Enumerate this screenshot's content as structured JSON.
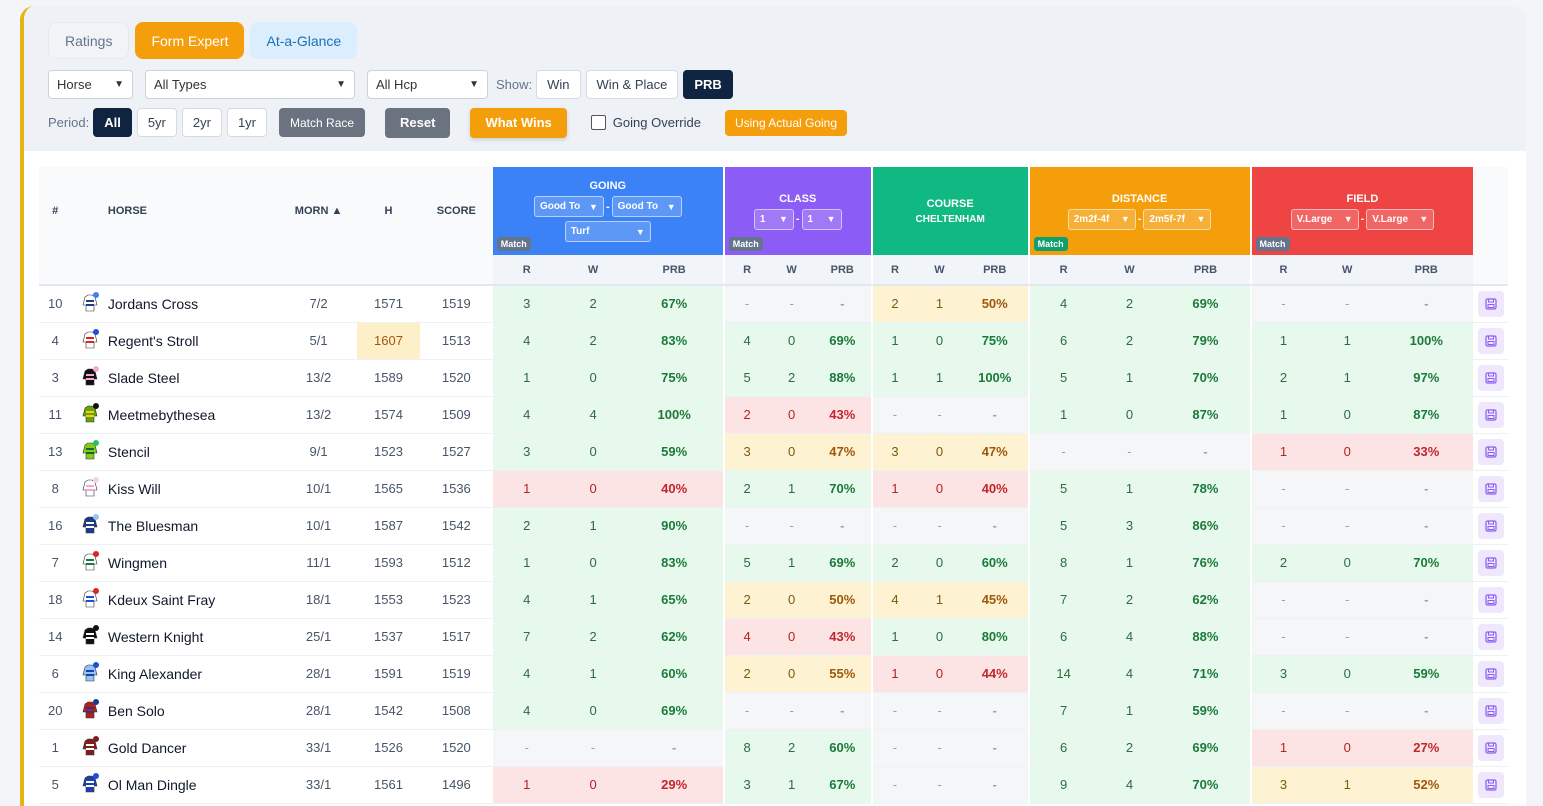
{
  "tabs": [
    {
      "label": "Ratings"
    },
    {
      "label": "Form Expert"
    },
    {
      "label": "At-a-Glance"
    }
  ],
  "filters": {
    "race_type": "Horse",
    "types": "All Types",
    "hcp": "All Hcp",
    "show_label": "Show:",
    "show_options": [
      "Win",
      "Win & Place",
      "PRB"
    ],
    "show_selected": "PRB",
    "period_label": "Period:",
    "period_options": [
      "All",
      "5yr",
      "2yr",
      "1yr"
    ],
    "period_selected": "All",
    "match_race": "Match Race",
    "reset": "Reset",
    "what_wins": "What Wins",
    "going_override": "Going Override",
    "using_actual_going": "Using Actual Going"
  },
  "headers": {
    "num": "#",
    "horse": "HORSE",
    "morn": "MORN ▲",
    "h": "H",
    "score": "SCORE",
    "going": {
      "title": "GOING",
      "sel1": "Good To",
      "sel2": "Good To",
      "sel3": "Turf",
      "tag": "Match"
    },
    "class": {
      "title": "CLASS",
      "sel1": "1",
      "sel2": "1",
      "tag": "Match"
    },
    "course": {
      "title": "COURSE",
      "sub": "CHELTENHAM"
    },
    "distance": {
      "title": "DISTANCE",
      "sel1": "2m2f-4f",
      "sel2": "2m5f-7f",
      "tag": "Match"
    },
    "field": {
      "title": "FIELD",
      "sel1": "V.Large",
      "sel2": "V.Large",
      "tag": "Match"
    },
    "sub": {
      "r": "R",
      "w": "W",
      "prb": "PRB"
    }
  },
  "colors": {
    "going": "#3b82f6",
    "class": "#8b5cf6",
    "course": "#10b981",
    "distance": "#f59e0b",
    "field": "#ef4444",
    "accent": "#f59e0b",
    "navy": "#0f2440"
  },
  "rows": [
    {
      "num": "10",
      "horse": "Jordans Cross",
      "morn": "7/2",
      "h": "1571",
      "score": "1519",
      "going": [
        "3",
        "2",
        "67%",
        "g"
      ],
      "class": [
        "-",
        "-",
        "-",
        "n"
      ],
      "course": [
        "2",
        "1",
        "50%",
        "y"
      ],
      "distance": [
        "4",
        "2",
        "69%",
        "g"
      ],
      "field": [
        "-",
        "-",
        "-",
        "n"
      ]
    },
    {
      "num": "4",
      "horse": "Regent's Stroll",
      "morn": "5/1",
      "h": "1607",
      "score": "1513",
      "going": [
        "4",
        "2",
        "83%",
        "g"
      ],
      "class": [
        "4",
        "0",
        "69%",
        "g"
      ],
      "course": [
        "1",
        "0",
        "75%",
        "g"
      ],
      "distance": [
        "6",
        "2",
        "79%",
        "g"
      ],
      "field": [
        "1",
        "1",
        "100%",
        "g"
      ]
    },
    {
      "num": "3",
      "horse": "Slade Steel",
      "morn": "13/2",
      "h": "1589",
      "score": "1520",
      "going": [
        "1",
        "0",
        "75%",
        "g"
      ],
      "class": [
        "5",
        "2",
        "88%",
        "g"
      ],
      "course": [
        "1",
        "1",
        "100%",
        "g"
      ],
      "distance": [
        "5",
        "1",
        "70%",
        "g"
      ],
      "field": [
        "2",
        "1",
        "97%",
        "g"
      ]
    },
    {
      "num": "11",
      "horse": "Meetmebythesea",
      "morn": "13/2",
      "h": "1574",
      "score": "1509",
      "going": [
        "4",
        "4",
        "100%",
        "g"
      ],
      "class": [
        "2",
        "0",
        "43%",
        "r"
      ],
      "course": [
        "-",
        "-",
        "-",
        "n"
      ],
      "distance": [
        "1",
        "0",
        "87%",
        "g"
      ],
      "field": [
        "1",
        "0",
        "87%",
        "g"
      ]
    },
    {
      "num": "13",
      "horse": "Stencil",
      "morn": "9/1",
      "h": "1523",
      "score": "1527",
      "going": [
        "3",
        "0",
        "59%",
        "g"
      ],
      "class": [
        "3",
        "0",
        "47%",
        "y"
      ],
      "course": [
        "3",
        "0",
        "47%",
        "y"
      ],
      "distance": [
        "-",
        "-",
        "-",
        "n"
      ],
      "field": [
        "1",
        "0",
        "33%",
        "r"
      ]
    },
    {
      "num": "8",
      "horse": "Kiss Will",
      "morn": "10/1",
      "h": "1565",
      "score": "1536",
      "going": [
        "1",
        "0",
        "40%",
        "r"
      ],
      "class": [
        "2",
        "1",
        "70%",
        "g"
      ],
      "course": [
        "1",
        "0",
        "40%",
        "r"
      ],
      "distance": [
        "5",
        "1",
        "78%",
        "g"
      ],
      "field": [
        "-",
        "-",
        "-",
        "n"
      ]
    },
    {
      "num": "16",
      "horse": "The Bluesman",
      "morn": "10/1",
      "h": "1587",
      "score": "1542",
      "going": [
        "2",
        "1",
        "90%",
        "g"
      ],
      "class": [
        "-",
        "-",
        "-",
        "n"
      ],
      "course": [
        "-",
        "-",
        "-",
        "n"
      ],
      "distance": [
        "5",
        "3",
        "86%",
        "g"
      ],
      "field": [
        "-",
        "-",
        "-",
        "n"
      ]
    },
    {
      "num": "7",
      "horse": "Wingmen",
      "morn": "11/1",
      "h": "1593",
      "score": "1512",
      "going": [
        "1",
        "0",
        "83%",
        "g"
      ],
      "class": [
        "5",
        "1",
        "69%",
        "g"
      ],
      "course": [
        "2",
        "0",
        "60%",
        "g"
      ],
      "distance": [
        "8",
        "1",
        "76%",
        "g"
      ],
      "field": [
        "2",
        "0",
        "70%",
        "g"
      ]
    },
    {
      "num": "18",
      "horse": "Kdeux Saint Fray",
      "morn": "18/1",
      "h": "1553",
      "score": "1523",
      "going": [
        "4",
        "1",
        "65%",
        "g"
      ],
      "class": [
        "2",
        "0",
        "50%",
        "y"
      ],
      "course": [
        "4",
        "1",
        "45%",
        "y"
      ],
      "distance": [
        "7",
        "2",
        "62%",
        "g"
      ],
      "field": [
        "-",
        "-",
        "-",
        "n"
      ]
    },
    {
      "num": "14",
      "horse": "Western Knight",
      "morn": "25/1",
      "h": "1537",
      "score": "1517",
      "going": [
        "7",
        "2",
        "62%",
        "g"
      ],
      "class": [
        "4",
        "0",
        "43%",
        "r"
      ],
      "course": [
        "1",
        "0",
        "80%",
        "g"
      ],
      "distance": [
        "6",
        "4",
        "88%",
        "g"
      ],
      "field": [
        "-",
        "-",
        "-",
        "n"
      ]
    },
    {
      "num": "6",
      "horse": "King Alexander",
      "morn": "28/1",
      "h": "1591",
      "score": "1519",
      "going": [
        "4",
        "1",
        "60%",
        "g"
      ],
      "class": [
        "2",
        "0",
        "55%",
        "y"
      ],
      "course": [
        "1",
        "0",
        "44%",
        "r"
      ],
      "distance": [
        "14",
        "4",
        "71%",
        "g"
      ],
      "field": [
        "3",
        "0",
        "59%",
        "g"
      ]
    },
    {
      "num": "20",
      "horse": "Ben Solo",
      "morn": "28/1",
      "h": "1542",
      "score": "1508",
      "going": [
        "4",
        "0",
        "69%",
        "g"
      ],
      "class": [
        "-",
        "-",
        "-",
        "n"
      ],
      "course": [
        "-",
        "-",
        "-",
        "n"
      ],
      "distance": [
        "7",
        "1",
        "59%",
        "g"
      ],
      "field": [
        "-",
        "-",
        "-",
        "n"
      ]
    },
    {
      "num": "1",
      "horse": "Gold Dancer",
      "morn": "33/1",
      "h": "1526",
      "score": "1520",
      "going": [
        "-",
        "-",
        "-",
        "n"
      ],
      "class": [
        "8",
        "2",
        "60%",
        "g"
      ],
      "course": [
        "-",
        "-",
        "-",
        "n"
      ],
      "distance": [
        "6",
        "2",
        "69%",
        "g"
      ],
      "field": [
        "1",
        "0",
        "27%",
        "r"
      ]
    },
    {
      "num": "5",
      "horse": "Ol Man Dingle",
      "morn": "33/1",
      "h": "1561",
      "score": "1496",
      "going": [
        "1",
        "0",
        "29%",
        "r"
      ],
      "class": [
        "3",
        "1",
        "67%",
        "g"
      ],
      "course": [
        "-",
        "-",
        "-",
        "n"
      ],
      "distance": [
        "9",
        "4",
        "70%",
        "g"
      ],
      "field": [
        "3",
        "1",
        "52%",
        "y"
      ]
    }
  ],
  "highlight_h_row": 1,
  "silks": [
    {
      "body": "#ffffff",
      "accent": "#1e3a8a",
      "cap": "#3b82f6"
    },
    {
      "body": "#ffffff",
      "accent": "#dc2626",
      "cap": "#1d4ed8"
    },
    {
      "body": "#111111",
      "accent": "#f9a8d4",
      "cap": "#f9a8d4"
    },
    {
      "body": "#65a30d",
      "accent": "#facc15",
      "cap": "#111111"
    },
    {
      "body": "#84cc16",
      "accent": "#166534",
      "cap": "#22c55e"
    },
    {
      "body": "#ffffff",
      "accent": "#f9a8d4",
      "cap": "#fbcfe8"
    },
    {
      "body": "#1e3a8a",
      "accent": "#ffffff",
      "cap": "#93c5fd"
    },
    {
      "body": "#ffffff",
      "accent": "#15803d",
      "cap": "#dc2626"
    },
    {
      "body": "#ffffff",
      "accent": "#1d4ed8",
      "cap": "#dc2626"
    },
    {
      "body": "#111111",
      "accent": "#ffffff",
      "cap": "#111111"
    },
    {
      "body": "#93c5fd",
      "accent": "#1e40af",
      "cap": "#1d4ed8"
    },
    {
      "body": "#b91c1c",
      "accent": "#1e3a8a",
      "cap": "#1e3a8a"
    },
    {
      "body": "#7f1d1d",
      "accent": "#ffffff",
      "cap": "#7f1d1d"
    },
    {
      "body": "#1e40af",
      "accent": "#ffffff",
      "cap": "#1d4ed8"
    }
  ]
}
